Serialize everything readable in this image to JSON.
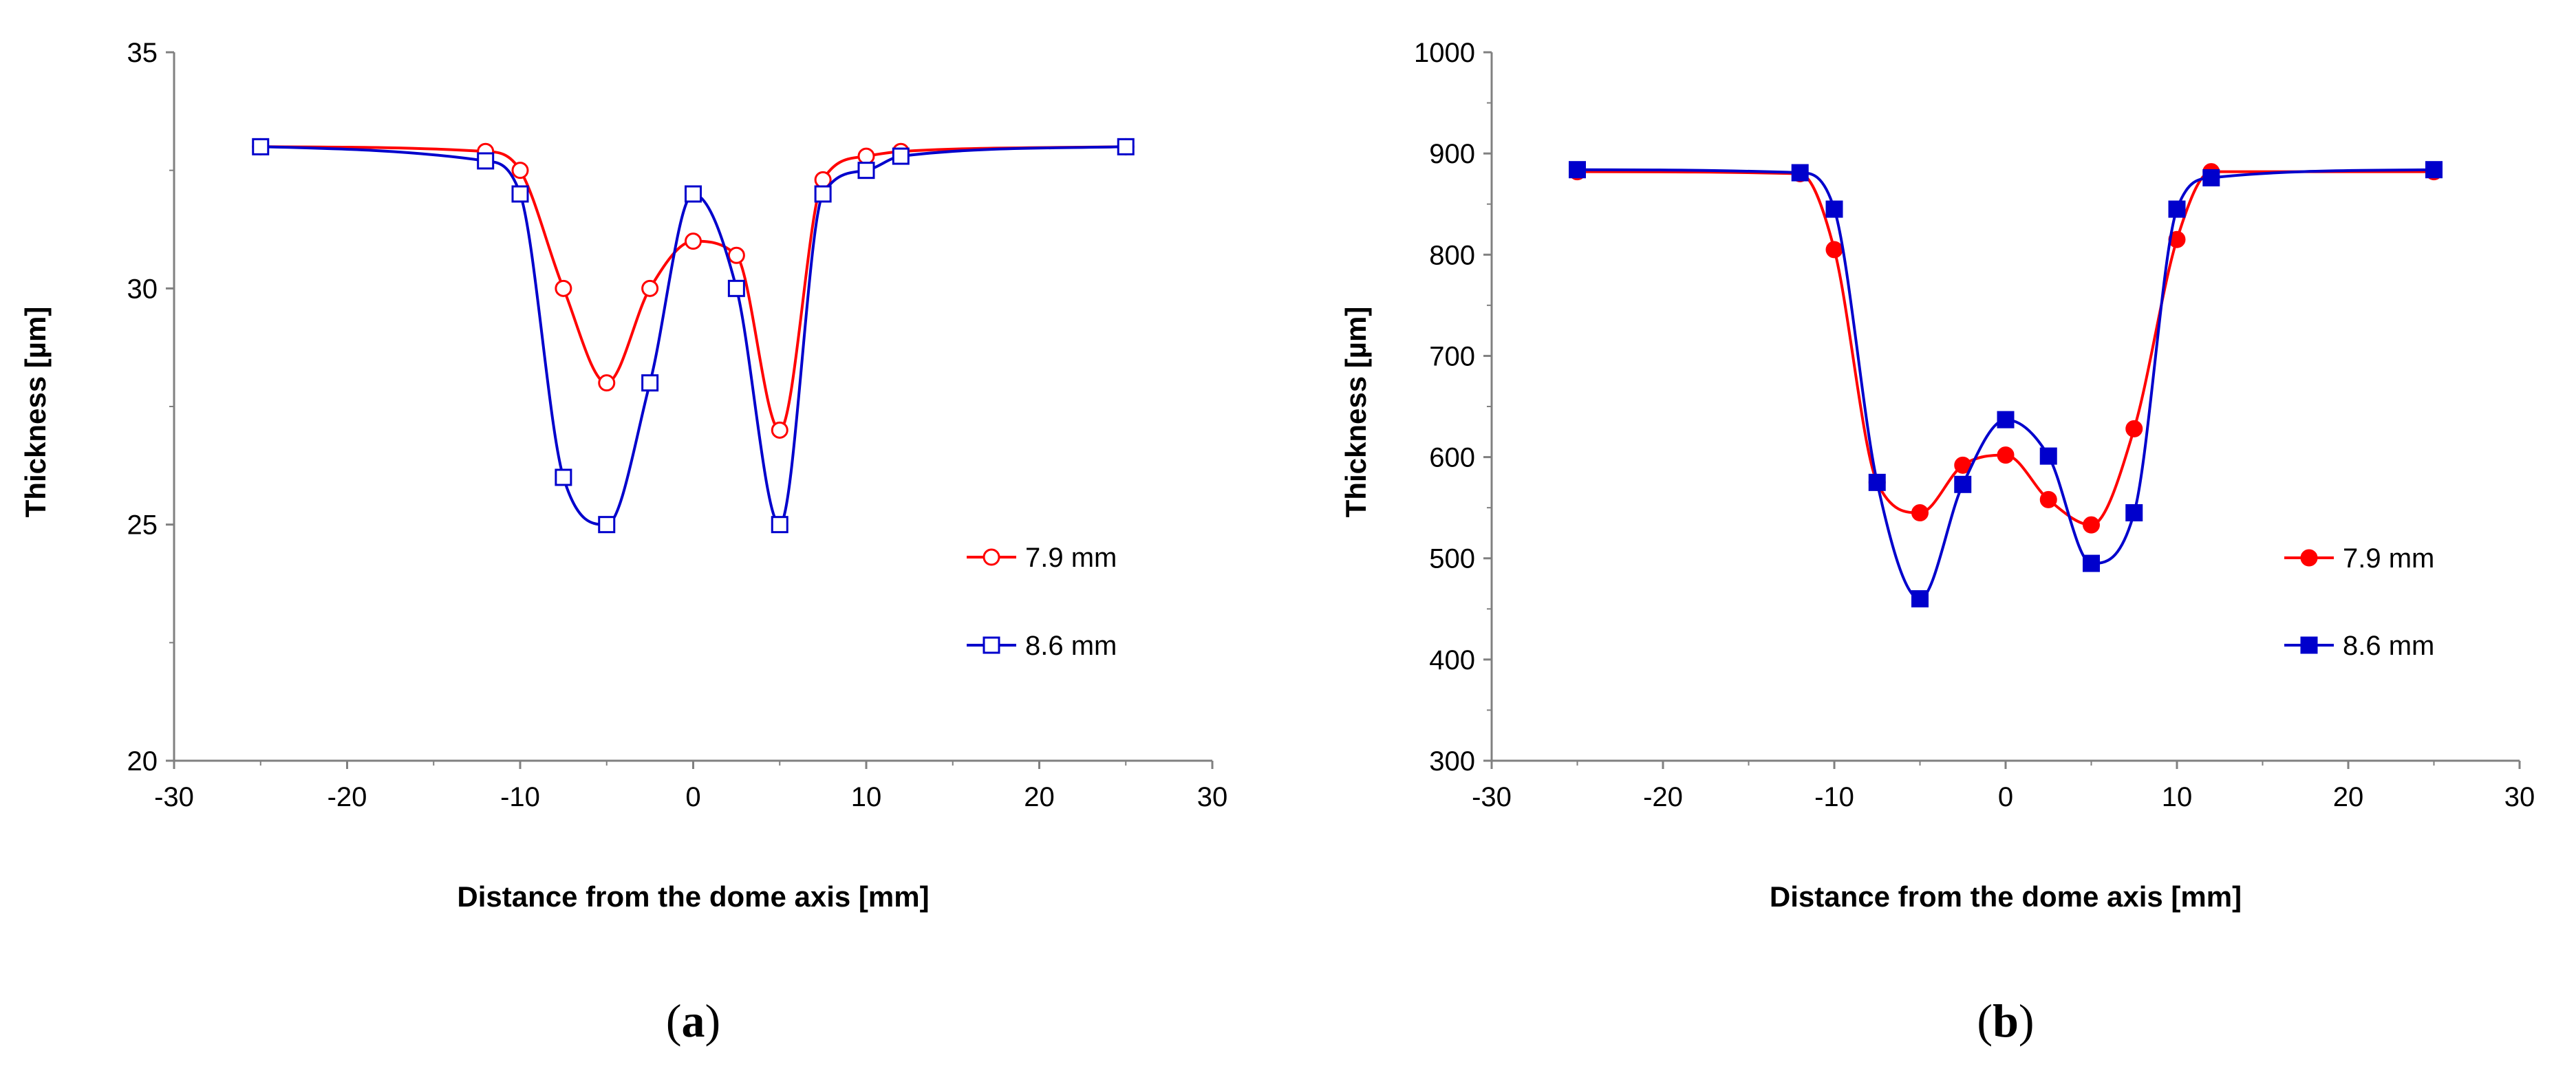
{
  "chart_data": [
    {
      "type": "line",
      "panel_label": "a",
      "xlabel": "Distance from the dome axis [mm]",
      "ylabel": "Thickness [µm]",
      "xlim": [
        -30,
        30
      ],
      "ylim": [
        20,
        35
      ],
      "x_ticks": [
        -30,
        -20,
        -10,
        0,
        10,
        20,
        30
      ],
      "y_ticks": [
        20,
        25,
        30,
        35
      ],
      "grid": false,
      "legend_position": "right",
      "series": [
        {
          "name": "7.9 mm",
          "color": "#ff0000",
          "marker": "open-circle",
          "x": [
            -25,
            -12,
            -10,
            -7.5,
            -5,
            -2.5,
            0,
            2.5,
            5,
            7.5,
            10,
            12,
            25
          ],
          "y": [
            33,
            32.9,
            32.5,
            30,
            28,
            30,
            31,
            30.7,
            27,
            32.3,
            32.8,
            32.9,
            33
          ]
        },
        {
          "name": "8.6 mm",
          "color": "#0000cc",
          "marker": "open-square",
          "x": [
            -25,
            -12,
            -10,
            -7.5,
            -5,
            -2.5,
            0,
            2.5,
            5,
            7.5,
            10,
            12,
            25
          ],
          "y": [
            33,
            32.7,
            32,
            26,
            25,
            28,
            32,
            30,
            25,
            32,
            32.5,
            32.8,
            33
          ]
        }
      ]
    },
    {
      "type": "line",
      "panel_label": "b",
      "xlabel": "Distance from the dome axis [mm]",
      "ylabel": "Thickness [µm]",
      "xlim": [
        -30,
        30
      ],
      "ylim": [
        300,
        1000
      ],
      "x_ticks": [
        -30,
        -20,
        -10,
        0,
        10,
        20,
        30
      ],
      "y_ticks": [
        300,
        400,
        500,
        600,
        700,
        800,
        900,
        1000
      ],
      "grid": false,
      "legend_position": "right",
      "series": [
        {
          "name": "7.9 mm",
          "color": "#ff0000",
          "marker": "filled-circle",
          "x": [
            -25,
            -12,
            -10,
            -7.5,
            -5,
            -2.5,
            0,
            2.5,
            5,
            7.5,
            10,
            12,
            25
          ],
          "y": [
            882,
            880,
            805,
            575,
            545,
            592,
            602,
            558,
            533,
            628,
            815,
            882,
            882
          ]
        },
        {
          "name": "8.6 mm",
          "color": "#0000cc",
          "marker": "filled-square",
          "x": [
            -25,
            -12,
            -10,
            -7.5,
            -5,
            -2.5,
            0,
            2.5,
            5,
            7.5,
            10,
            12,
            25
          ],
          "y": [
            884,
            881,
            845,
            575,
            460,
            573,
            637,
            601,
            495,
            545,
            845,
            876,
            884
          ]
        }
      ]
    }
  ]
}
